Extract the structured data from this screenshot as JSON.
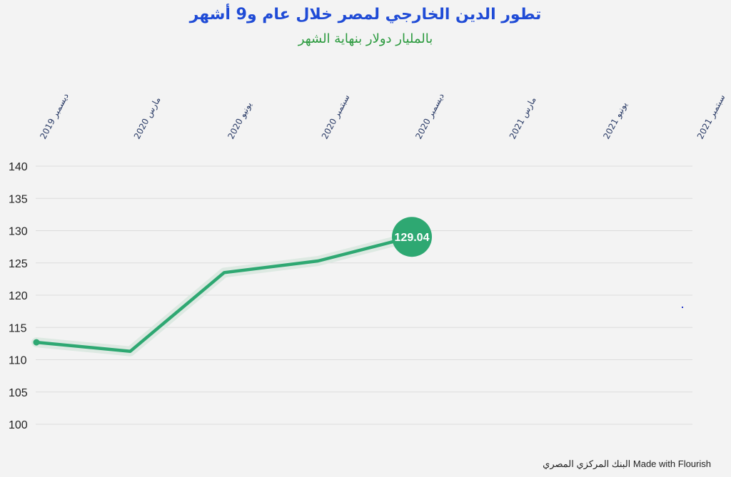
{
  "title": "تطور الدين الخارجي لمصر خلال عام و9 أشهر",
  "subtitle": "بالمليار دولار بنهاية الشهر",
  "footer": {
    "made_with": "Made with Flourish",
    "source": "البنك المركزي المصري"
  },
  "colors": {
    "line": "#2ea872",
    "halo": "#dde9e2",
    "title": "#1f4bd6",
    "subtitle": "#2b9a3e"
  },
  "chart_data": {
    "type": "line",
    "categories": [
      "ديسمبر 2019",
      "مارس 2020",
      "يونيو 2020",
      "سبتمبر 2020",
      "ديسمبر 2020",
      "مارس 2021",
      "يونيو 2021",
      "سبتمبر 2021"
    ],
    "series": [
      {
        "values": [
          112.7,
          111.3,
          123.5,
          125.3,
          129.04,
          null,
          null,
          null
        ]
      }
    ],
    "ylim": [
      100,
      140
    ],
    "yticks": [
      100,
      105,
      110,
      115,
      120,
      125,
      130,
      135,
      140
    ],
    "grid": true,
    "annotation": {
      "category_index": 4,
      "text": "129.04"
    }
  }
}
